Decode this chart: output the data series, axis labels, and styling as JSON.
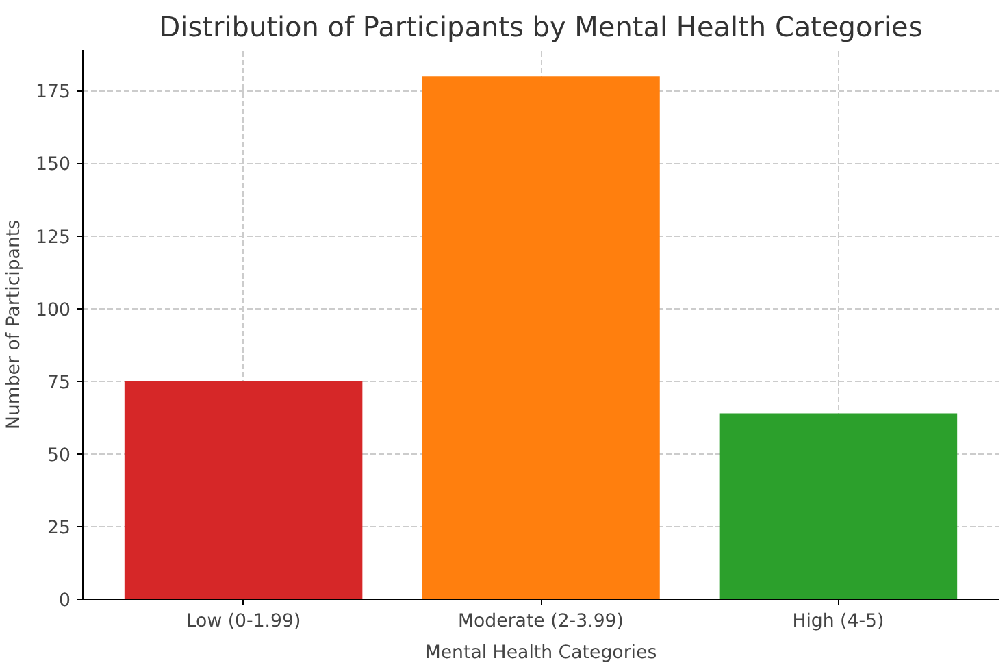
{
  "chart_data": {
    "type": "bar",
    "title": "Distribution of Participants by Mental Health Categories",
    "xlabel": "Mental Health Categories",
    "ylabel": "Number of Participants",
    "categories": [
      "Low (0-1.99)",
      "Moderate (2-3.99)",
      "High (4-5)"
    ],
    "values": [
      75,
      180,
      64
    ],
    "colors": [
      "#d62728",
      "#ff7f0e",
      "#2ca02c"
    ],
    "ylim": [
      0,
      189
    ],
    "yticks": [
      0,
      25,
      50,
      75,
      100,
      125,
      150,
      175
    ],
    "grid": true
  }
}
